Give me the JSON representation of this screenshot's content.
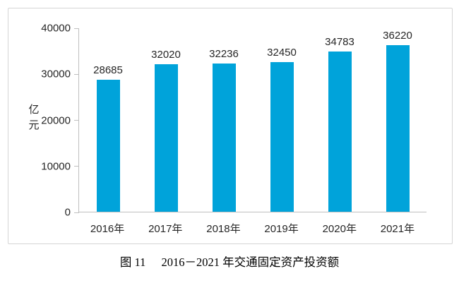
{
  "chart_data": {
    "type": "bar",
    "categories": [
      "2016年",
      "2017年",
      "2018年",
      "2019年",
      "2020年",
      "2021年"
    ],
    "values": [
      28685,
      32020,
      32236,
      32450,
      34783,
      36220
    ],
    "data_labels": [
      "28685",
      "32020",
      "32236",
      "32450",
      "34783",
      "36220"
    ],
    "title": "",
    "xlabel": "",
    "ylabel": "亿元",
    "ylim": [
      0,
      40000
    ],
    "yticks": [
      0,
      10000,
      20000,
      30000,
      40000
    ],
    "ytick_labels": [
      "0",
      "10000",
      "20000",
      "30000",
      "40000"
    ],
    "grid": false,
    "legend_position": "none",
    "bar_color": "#00a3da",
    "axis_color": "#bfbfbf",
    "text_color": "#262626"
  },
  "caption": {
    "figure_label": "图 11",
    "title": "2016－2021 年交通固定资产投资额"
  },
  "frame": {
    "border_color": "#d5d5d5",
    "background_color": "#ffffff"
  }
}
